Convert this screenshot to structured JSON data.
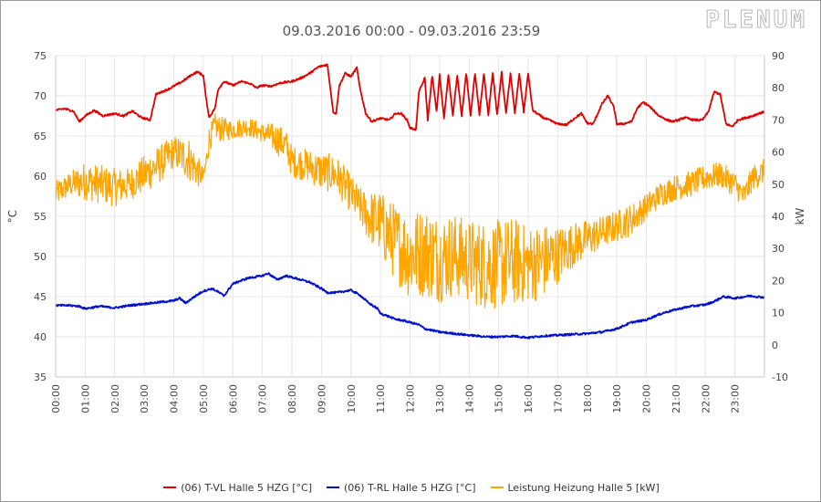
{
  "logo_text": "PLENUM",
  "chart_data": {
    "type": "line",
    "title": "09.03.2016 00:00 - 09.03.2016 23:59",
    "ylabel_left": "°C",
    "ylabel_right": "kW",
    "ylim_left": [
      35,
      75
    ],
    "ylim_right": [
      -10,
      90
    ],
    "yticks_left": [
      35,
      40,
      45,
      50,
      55,
      60,
      65,
      70,
      75
    ],
    "yticks_right": [
      -10,
      0,
      10,
      20,
      30,
      40,
      50,
      60,
      70,
      80,
      90
    ],
    "xlim": [
      0,
      24
    ],
    "x_unit": "hour",
    "xticks": [
      "00:00",
      "01:00",
      "02:00",
      "03:00",
      "04:00",
      "05:00",
      "06:00",
      "07:00",
      "08:00",
      "09:00",
      "10:00",
      "11:00",
      "12:00",
      "13:00",
      "14:00",
      "15:00",
      "16:00",
      "17:00",
      "18:00",
      "19:00",
      "20:00",
      "21:00",
      "22:00",
      "23:00"
    ],
    "grid": true,
    "legend_position": "bottom",
    "series": [
      {
        "name": "(06) T-VL Halle 5 HZG [°C]",
        "color": "#e00000",
        "axis": "left",
        "x": [
          0,
          0.3,
          0.6,
          0.8,
          1.0,
          1.3,
          1.6,
          2.0,
          2.3,
          2.6,
          2.9,
          3.2,
          3.4,
          3.6,
          3.8,
          4.0,
          4.3,
          4.6,
          4.8,
          5.0,
          5.1,
          5.2,
          5.4,
          5.5,
          5.7,
          6.0,
          6.3,
          6.6,
          6.8,
          7.0,
          7.3,
          7.6,
          8.0,
          8.3,
          8.6,
          8.9,
          9.2,
          9.3,
          9.4,
          9.5,
          9.6,
          9.8,
          10.0,
          10.2,
          10.3,
          10.5,
          10.7,
          11.0,
          11.3,
          11.5,
          11.7,
          11.9,
          12.0,
          12.2,
          12.3,
          12.5,
          12.6,
          12.75,
          12.9,
          13.0,
          13.15,
          13.3,
          13.45,
          13.6,
          13.75,
          13.9,
          14.05,
          14.2,
          14.35,
          14.5,
          14.65,
          14.8,
          14.95,
          15.1,
          15.25,
          15.4,
          15.55,
          15.7,
          15.85,
          16.0,
          16.15,
          16.3,
          16.5,
          16.7,
          17.0,
          17.3,
          17.6,
          17.8,
          18.0,
          18.2,
          18.5,
          18.7,
          18.9,
          19.0,
          19.2,
          19.5,
          19.7,
          19.9,
          20.1,
          20.4,
          20.7,
          20.9,
          21.1,
          21.3,
          21.6,
          21.9,
          22.1,
          22.3,
          22.5,
          22.7,
          22.9,
          23.0,
          23.1,
          23.4,
          23.6,
          23.8,
          24.0
        ],
        "y": [
          68.2,
          68.4,
          68.1,
          66.8,
          67.5,
          68.2,
          67.5,
          67.8,
          67.5,
          68.1,
          67.3,
          67.0,
          70.2,
          70.5,
          70.8,
          71.2,
          71.8,
          72.6,
          73.0,
          72.5,
          69.5,
          67.3,
          68.5,
          70.8,
          71.8,
          71.3,
          71.8,
          71.5,
          71.0,
          71.3,
          71.2,
          71.6,
          71.8,
          72.2,
          72.8,
          73.6,
          73.9,
          71.0,
          68.0,
          67.8,
          71.2,
          72.8,
          72.4,
          73.5,
          71.0,
          67.8,
          66.8,
          67.2,
          67.0,
          67.8,
          67.8,
          67.0,
          66.0,
          65.8,
          70.5,
          72.2,
          67.0,
          72.5,
          68.0,
          72.6,
          67.2,
          72.7,
          67.5,
          72.6,
          67.5,
          72.8,
          67.6,
          72.8,
          67.6,
          72.8,
          67.6,
          72.9,
          67.6,
          72.9,
          67.8,
          72.8,
          67.8,
          72.8,
          68.0,
          72.8,
          68.2,
          67.8,
          67.3,
          67.0,
          66.5,
          66.4,
          67.3,
          67.8,
          66.6,
          66.5,
          69.0,
          70.0,
          68.6,
          66.5,
          66.5,
          66.8,
          68.5,
          69.2,
          68.7,
          67.6,
          67.0,
          66.8,
          67.0,
          67.3,
          67.0,
          67.0,
          68.0,
          70.5,
          70.2,
          66.5,
          66.2,
          66.5,
          67.0,
          67.3,
          67.5,
          67.8,
          68.0
        ]
      },
      {
        "name": "(06) T-RL Halle 5 HZG [°C]",
        "color": "#0010cc",
        "axis": "left",
        "x": [
          0,
          0.5,
          0.8,
          1.0,
          1.5,
          2.0,
          2.5,
          3.0,
          3.5,
          4.0,
          4.2,
          4.4,
          4.7,
          5.0,
          5.3,
          5.5,
          5.7,
          6.0,
          6.5,
          7.0,
          7.2,
          7.5,
          7.8,
          8.0,
          8.3,
          8.6,
          9.0,
          9.2,
          9.5,
          10.0,
          10.3,
          10.6,
          10.9,
          11.0,
          11.3,
          11.5,
          11.8,
          12.0,
          12.3,
          12.5,
          13.0,
          13.5,
          14.0,
          14.3,
          14.6,
          15.0,
          15.5,
          16.0,
          16.5,
          17.0,
          17.5,
          18.0,
          18.5,
          19.0,
          19.5,
          20.0,
          20.3,
          20.6,
          21.0,
          21.5,
          22.0,
          22.3,
          22.6,
          23.0,
          23.5,
          24.0
        ],
        "y": [
          43.9,
          43.9,
          43.8,
          43.5,
          43.8,
          43.6,
          43.9,
          44.1,
          44.3,
          44.5,
          44.8,
          44.2,
          45.0,
          45.7,
          46.0,
          45.6,
          45.1,
          46.6,
          47.3,
          47.6,
          47.9,
          47.1,
          47.6,
          47.4,
          47.1,
          46.8,
          46.0,
          45.5,
          45.5,
          45.8,
          45.2,
          44.2,
          43.5,
          42.9,
          42.5,
          42.2,
          42.0,
          41.8,
          41.5,
          41.0,
          40.6,
          40.4,
          40.2,
          40.1,
          40.0,
          40.0,
          40.1,
          39.9,
          40.1,
          40.2,
          40.3,
          40.4,
          40.6,
          41.0,
          41.8,
          42.1,
          42.6,
          43.0,
          43.4,
          43.8,
          44.0,
          44.4,
          45.0,
          44.8,
          45.1,
          44.9
        ]
      },
      {
        "name": "Leistung Heizung Halle 5 [kW]",
        "color": "#ffa500",
        "axis": "right",
        "x": [
          0,
          0.5,
          1.0,
          1.5,
          2.0,
          2.5,
          3.0,
          3.5,
          4.0,
          4.5,
          4.8,
          5.0,
          5.1,
          5.2,
          5.4,
          5.6,
          6.0,
          6.5,
          7.0,
          7.5,
          7.8,
          8.0,
          8.5,
          9.0,
          9.5,
          10.0,
          10.3,
          10.6,
          11.0,
          11.2,
          11.5,
          12.0,
          12.5,
          13.0,
          13.5,
          14.0,
          14.5,
          15.0,
          15.5,
          16.0,
          16.5,
          17.0,
          17.5,
          18.0,
          18.5,
          19.0,
          19.5,
          20.0,
          20.5,
          21.0,
          21.5,
          22.0,
          22.5,
          23.0,
          23.3,
          23.6,
          24.0
        ],
        "y": [
          47,
          50,
          51,
          50,
          49,
          50,
          53,
          56,
          60,
          58,
          54,
          52,
          57,
          64,
          68,
          67,
          67,
          68,
          66,
          64,
          62,
          57,
          56,
          54,
          53,
          47,
          43,
          40,
          38,
          35,
          32,
          28,
          29,
          27,
          28,
          26,
          25,
          25,
          26,
          25,
          26,
          28,
          31,
          33,
          35,
          37,
          39,
          43,
          47,
          49,
          50,
          52,
          53,
          50,
          46,
          52,
          54
        ],
        "noise": [
          4,
          4,
          6,
          6,
          6,
          5,
          6,
          6,
          5,
          7,
          5,
          3,
          3,
          4,
          4,
          4,
          3,
          3,
          3,
          5,
          5,
          5,
          5,
          6,
          6,
          6,
          6,
          8,
          10,
          11,
          12,
          14,
          14,
          14,
          13,
          13,
          14,
          14,
          14,
          12,
          12,
          9,
          7,
          6,
          5,
          5,
          5,
          4,
          4,
          4,
          4,
          4,
          4,
          4,
          4,
          4,
          4
        ]
      }
    ]
  }
}
